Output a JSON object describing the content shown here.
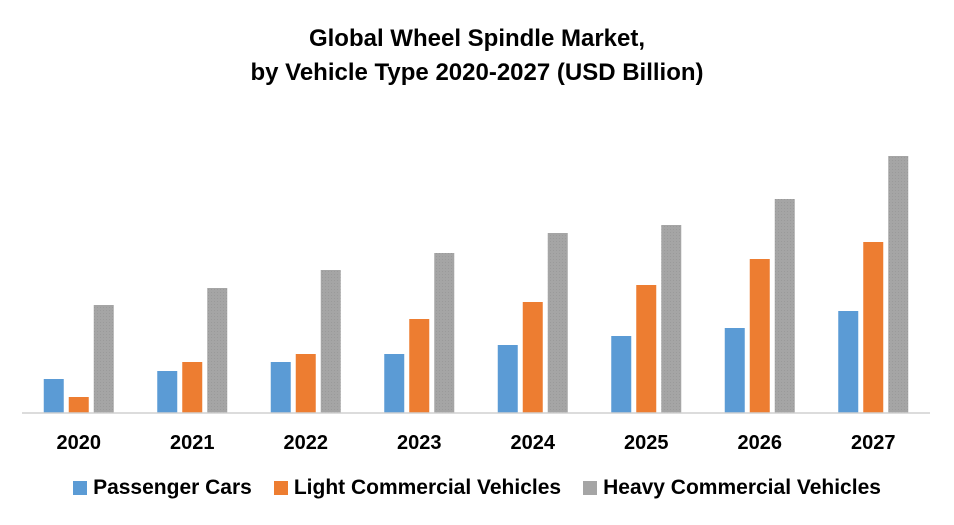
{
  "chart_data": {
    "type": "bar",
    "title": "Global Wheel Spindle Market,",
    "subtitle": "by Vehicle Type 2020-2027 (USD Billion)",
    "xlabel": "",
    "ylabel": "",
    "categories": [
      "2020",
      "2021",
      "2022",
      "2023",
      "2024",
      "2025",
      "2026",
      "2027"
    ],
    "series": [
      {
        "name": "Passenger Cars",
        "color": "#5B9BD5",
        "values": [
          34,
          42,
          51,
          59,
          68,
          77,
          85,
          102
        ]
      },
      {
        "name": "Light Commercial Vehicles",
        "color": "#ED7D31",
        "values": [
          16,
          51,
          59,
          94,
          111,
          128,
          154,
          171
        ]
      },
      {
        "name": "Heavy Commercial Vehicles",
        "color": "#A5A5A5",
        "values": [
          108,
          125,
          143,
          160,
          180,
          188,
          214,
          257
        ]
      }
    ],
    "ylim": [
      0,
      257
    ],
    "y_axis_visible": false,
    "grid": false,
    "legend_position": "bottom",
    "value_units_note": "relative units; no y-axis scale shown"
  }
}
